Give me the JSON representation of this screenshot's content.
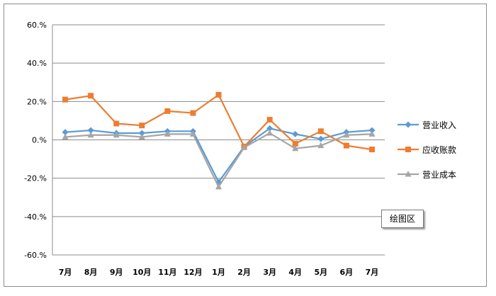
{
  "tooltip": "绘图区",
  "chart_data": {
    "type": "line",
    "categories": [
      "7月",
      "8月",
      "9月",
      "10月",
      "11月",
      "12月",
      "1月",
      "2月",
      "3月",
      "4月",
      "5月",
      "6月",
      "7月"
    ],
    "ylim": [
      -60,
      60
    ],
    "yticks": [
      -60,
      -40,
      -20,
      0,
      20,
      40,
      60
    ],
    "ytick_labels": [
      "-60.%",
      "-40.%",
      "-20.%",
      "0.%",
      "20.%",
      "40.%",
      "60.%"
    ],
    "grid": true,
    "legend_position": "right",
    "series": [
      {
        "name": "营业收入",
        "color": "#5b9bd5",
        "marker": "diamond",
        "values": [
          4,
          5,
          3.5,
          3.5,
          4.5,
          4.5,
          -22,
          -3.5,
          6,
          3,
          0.5,
          4,
          5
        ]
      },
      {
        "name": "应收账款",
        "color": "#ed7d31",
        "marker": "square",
        "values": [
          21,
          23,
          8.5,
          7.5,
          15,
          14,
          23.5,
          -3.5,
          10.5,
          -2,
          4.5,
          -3,
          -5
        ]
      },
      {
        "name": "营业成本",
        "color": "#a5a5a5",
        "marker": "triangle",
        "values": [
          1.5,
          2.5,
          2.5,
          1.5,
          3,
          3,
          -24.5,
          -4,
          3.5,
          -4.5,
          -3,
          2.5,
          3
        ]
      }
    ]
  }
}
